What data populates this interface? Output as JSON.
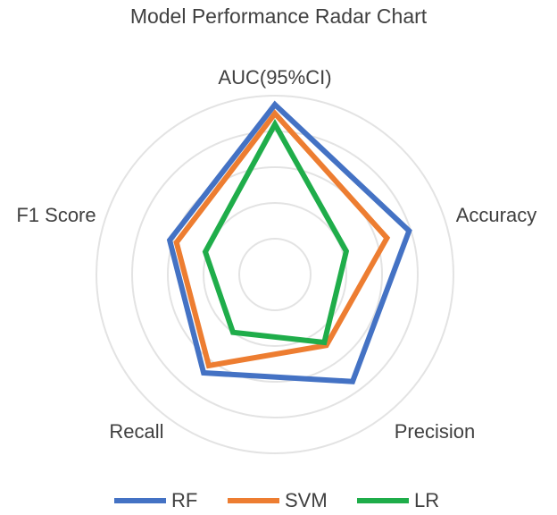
{
  "chart_data": {
    "type": "radar",
    "title": "Model Performance Radar Chart",
    "categories": [
      "AUC(95%CI)",
      "Accuracy",
      "Precision",
      "Recall",
      "F1 Score"
    ],
    "series": [
      {
        "name": "RF",
        "color": "#4472c4",
        "values": [
          0.975,
          0.895,
          0.87,
          0.84,
          0.81
        ]
      },
      {
        "name": "SVM",
        "color": "#ed7d31",
        "values": [
          0.95,
          0.83,
          0.745,
          0.815,
          0.79
        ]
      },
      {
        "name": "LR",
        "color": "#1fad4a",
        "values": [
          0.92,
          0.71,
          0.735,
          0.7,
          0.705
        ]
      }
    ],
    "ylim": [
      0.5,
      1.0
    ],
    "yticks": [
      0.6,
      0.7,
      0.8,
      0.9,
      1.0
    ],
    "grid": true,
    "legend": "bottom"
  }
}
